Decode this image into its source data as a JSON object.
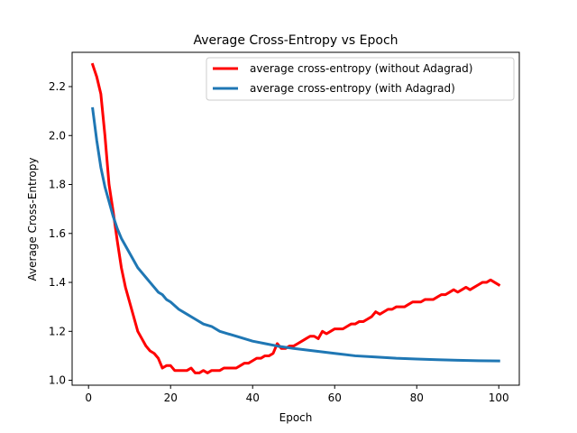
{
  "chart_data": {
    "type": "line",
    "title": "Average Cross-Entropy vs Epoch",
    "xlabel": "Epoch",
    "ylabel": "Average Cross-Entropy",
    "xlim": [
      -4,
      105
    ],
    "ylim": [
      0.98,
      2.34
    ],
    "xticks": [
      0,
      20,
      40,
      60,
      80,
      100
    ],
    "yticks": [
      1.0,
      1.2,
      1.4,
      1.6,
      1.8,
      2.0,
      2.2
    ],
    "grid": false,
    "legend_position": "top-right",
    "series": [
      {
        "name": "average cross-entropy (without Adagrad)",
        "color": "#ff0000",
        "x": [
          1,
          2,
          3,
          4,
          5,
          6,
          7,
          8,
          9,
          10,
          11,
          12,
          13,
          14,
          15,
          16,
          17,
          18,
          19,
          20,
          21,
          22,
          23,
          24,
          25,
          26,
          27,
          28,
          29,
          30,
          31,
          32,
          33,
          34,
          35,
          36,
          37,
          38,
          39,
          40,
          41,
          42,
          43,
          44,
          45,
          46,
          47,
          48,
          49,
          50,
          51,
          52,
          53,
          54,
          55,
          56,
          57,
          58,
          59,
          60,
          61,
          62,
          63,
          64,
          65,
          66,
          67,
          68,
          69,
          70,
          71,
          72,
          73,
          74,
          75,
          76,
          77,
          78,
          79,
          80,
          81,
          82,
          83,
          84,
          85,
          86,
          87,
          88,
          89,
          90,
          91,
          92,
          93,
          94,
          95,
          96,
          97,
          98,
          99,
          100
        ],
        "values": [
          2.29,
          2.24,
          2.17,
          2.0,
          1.8,
          1.69,
          1.57,
          1.46,
          1.38,
          1.32,
          1.26,
          1.2,
          1.17,
          1.14,
          1.12,
          1.11,
          1.09,
          1.05,
          1.06,
          1.06,
          1.04,
          1.04,
          1.04,
          1.04,
          1.05,
          1.03,
          1.03,
          1.04,
          1.03,
          1.04,
          1.04,
          1.04,
          1.05,
          1.05,
          1.05,
          1.05,
          1.06,
          1.07,
          1.07,
          1.08,
          1.09,
          1.09,
          1.1,
          1.1,
          1.11,
          1.15,
          1.13,
          1.13,
          1.14,
          1.14,
          1.15,
          1.16,
          1.17,
          1.18,
          1.18,
          1.17,
          1.2,
          1.19,
          1.2,
          1.21,
          1.21,
          1.21,
          1.22,
          1.23,
          1.23,
          1.24,
          1.24,
          1.25,
          1.26,
          1.28,
          1.27,
          1.28,
          1.29,
          1.29,
          1.3,
          1.3,
          1.3,
          1.31,
          1.32,
          1.32,
          1.32,
          1.33,
          1.33,
          1.33,
          1.34,
          1.35,
          1.35,
          1.36,
          1.37,
          1.36,
          1.37,
          1.38,
          1.37,
          1.38,
          1.39,
          1.4,
          1.4,
          1.41,
          1.4,
          1.39
        ]
      },
      {
        "name": "average cross-entropy (with Adagrad)",
        "color": "#1f77b4",
        "x": [
          1,
          2,
          3,
          4,
          5,
          6,
          7,
          8,
          9,
          10,
          11,
          12,
          13,
          14,
          15,
          16,
          17,
          18,
          19,
          20,
          22,
          24,
          26,
          28,
          30,
          32,
          34,
          36,
          38,
          40,
          43,
          46,
          50,
          55,
          60,
          65,
          70,
          75,
          80,
          85,
          90,
          95,
          100
        ],
        "values": [
          2.11,
          1.98,
          1.87,
          1.79,
          1.73,
          1.67,
          1.62,
          1.58,
          1.55,
          1.52,
          1.49,
          1.46,
          1.44,
          1.42,
          1.4,
          1.38,
          1.36,
          1.35,
          1.33,
          1.32,
          1.29,
          1.27,
          1.25,
          1.23,
          1.22,
          1.2,
          1.19,
          1.18,
          1.17,
          1.16,
          1.15,
          1.14,
          1.13,
          1.12,
          1.11,
          1.1,
          1.095,
          1.09,
          1.087,
          1.084,
          1.082,
          1.08,
          1.079
        ]
      }
    ]
  }
}
